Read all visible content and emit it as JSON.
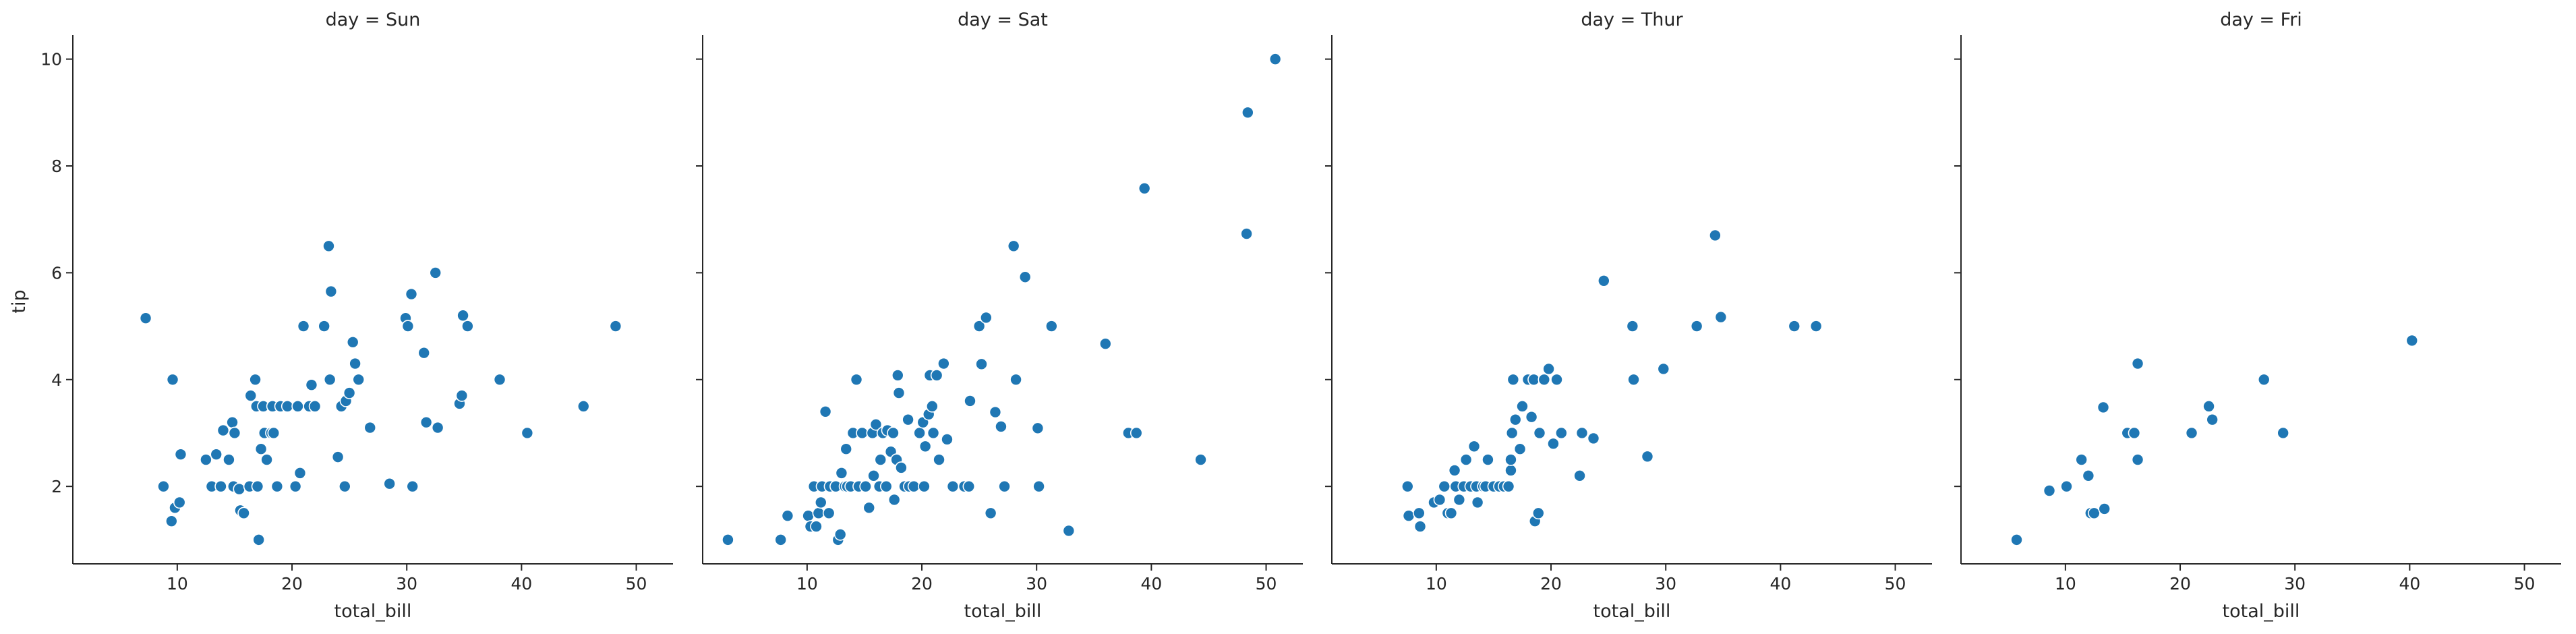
{
  "chart_data": {
    "type": "scatter",
    "x_label": "total_bill",
    "y_label": "tip",
    "xlim": [
      0.9,
      53.2
    ],
    "ylim": [
      0.55,
      10.45
    ],
    "x_ticks": [
      10,
      20,
      30,
      40,
      50
    ],
    "y_ticks": [
      2,
      4,
      6,
      8,
      10
    ],
    "grid": false,
    "point_color": "#1f77b4",
    "panels": [
      {
        "title": "day = Sun",
        "points": [
          [
            7.25,
            5.15
          ],
          [
            9.6,
            4.0
          ],
          [
            8.8,
            2.0
          ],
          [
            9.5,
            1.35
          ],
          [
            9.8,
            1.6
          ],
          [
            10.2,
            1.7
          ],
          [
            10.3,
            2.6
          ],
          [
            12.5,
            2.5
          ],
          [
            13.0,
            2.0
          ],
          [
            13.4,
            2.6
          ],
          [
            13.8,
            2.0
          ],
          [
            14.0,
            3.05
          ],
          [
            14.5,
            2.5
          ],
          [
            14.8,
            3.2
          ],
          [
            14.9,
            2.0
          ],
          [
            15.0,
            3.0
          ],
          [
            15.4,
            1.95
          ],
          [
            15.5,
            1.55
          ],
          [
            15.8,
            1.5
          ],
          [
            16.3,
            2.0
          ],
          [
            16.4,
            3.7
          ],
          [
            16.8,
            4.0
          ],
          [
            16.9,
            3.5
          ],
          [
            17.0,
            2.0
          ],
          [
            17.1,
            1.0
          ],
          [
            17.3,
            2.7
          ],
          [
            17.5,
            3.5
          ],
          [
            17.6,
            3.0
          ],
          [
            17.8,
            2.5
          ],
          [
            18.2,
            3.0
          ],
          [
            18.3,
            3.5
          ],
          [
            18.4,
            3.0
          ],
          [
            18.7,
            2.0
          ],
          [
            19.0,
            3.5
          ],
          [
            19.6,
            3.5
          ],
          [
            20.3,
            2.0
          ],
          [
            20.5,
            3.5
          ],
          [
            20.7,
            2.25
          ],
          [
            21.0,
            5.0
          ],
          [
            21.5,
            3.5
          ],
          [
            21.7,
            3.9
          ],
          [
            22.0,
            3.5
          ],
          [
            22.8,
            5.0
          ],
          [
            23.2,
            6.5
          ],
          [
            23.3,
            4.0
          ],
          [
            23.4,
            5.65
          ],
          [
            24.0,
            2.55
          ],
          [
            24.3,
            3.5
          ],
          [
            24.6,
            2.0
          ],
          [
            24.7,
            3.6
          ],
          [
            25.0,
            3.75
          ],
          [
            25.3,
            4.7
          ],
          [
            25.5,
            4.3
          ],
          [
            25.8,
            4.0
          ],
          [
            26.8,
            3.1
          ],
          [
            28.5,
            2.05
          ],
          [
            29.9,
            5.15
          ],
          [
            30.1,
            5.0
          ],
          [
            30.4,
            5.6
          ],
          [
            30.5,
            2.0
          ],
          [
            31.5,
            4.5
          ],
          [
            31.7,
            3.2
          ],
          [
            32.5,
            6.0
          ],
          [
            32.7,
            3.1
          ],
          [
            34.6,
            3.55
          ],
          [
            34.8,
            3.7
          ],
          [
            34.9,
            5.2
          ],
          [
            35.3,
            5.0
          ],
          [
            38.1,
            4.0
          ],
          [
            40.5,
            3.0
          ],
          [
            45.4,
            3.5
          ],
          [
            48.2,
            5.0
          ]
        ]
      },
      {
        "title": "day = Sat",
        "points": [
          [
            3.1,
            1.0
          ],
          [
            7.7,
            1.0
          ],
          [
            8.3,
            1.45
          ],
          [
            10.1,
            1.45
          ],
          [
            10.3,
            1.25
          ],
          [
            10.6,
            2.0
          ],
          [
            10.8,
            1.25
          ],
          [
            11.0,
            1.5
          ],
          [
            11.2,
            1.7
          ],
          [
            11.3,
            2.0
          ],
          [
            11.6,
            3.4
          ],
          [
            11.9,
            1.5
          ],
          [
            12.0,
            2.0
          ],
          [
            12.5,
            2.0
          ],
          [
            12.7,
            1.0
          ],
          [
            12.9,
            1.1
          ],
          [
            13.0,
            2.25
          ],
          [
            13.3,
            2.0
          ],
          [
            13.4,
            2.7
          ],
          [
            13.5,
            2.0
          ],
          [
            13.8,
            2.0
          ],
          [
            14.0,
            3.0
          ],
          [
            14.3,
            4.0
          ],
          [
            14.5,
            2.0
          ],
          [
            14.8,
            3.0
          ],
          [
            15.1,
            2.0
          ],
          [
            15.4,
            1.6
          ],
          [
            15.7,
            3.0
          ],
          [
            15.8,
            2.2
          ],
          [
            16.0,
            3.16
          ],
          [
            16.3,
            2.0
          ],
          [
            16.4,
            2.5
          ],
          [
            16.6,
            3.0
          ],
          [
            16.9,
            2.0
          ],
          [
            17.0,
            3.05
          ],
          [
            17.3,
            2.65
          ],
          [
            17.5,
            3.0
          ],
          [
            17.6,
            1.75
          ],
          [
            17.8,
            2.5
          ],
          [
            17.9,
            4.08
          ],
          [
            18.0,
            3.75
          ],
          [
            18.2,
            2.35
          ],
          [
            18.5,
            2.0
          ],
          [
            18.8,
            3.25
          ],
          [
            18.9,
            2.0
          ],
          [
            19.3,
            2.0
          ],
          [
            19.8,
            3.0
          ],
          [
            20.1,
            3.2
          ],
          [
            20.2,
            2.0
          ],
          [
            20.3,
            2.75
          ],
          [
            20.6,
            3.35
          ],
          [
            20.7,
            4.08
          ],
          [
            20.9,
            3.5
          ],
          [
            21.0,
            3.0
          ],
          [
            21.3,
            4.08
          ],
          [
            21.5,
            2.5
          ],
          [
            21.9,
            4.3
          ],
          [
            22.2,
            2.88
          ],
          [
            22.7,
            2.0
          ],
          [
            23.7,
            2.0
          ],
          [
            24.1,
            2.0
          ],
          [
            24.2,
            3.6
          ],
          [
            25.0,
            5.0
          ],
          [
            25.2,
            4.29
          ],
          [
            25.6,
            5.16
          ],
          [
            26.0,
            1.5
          ],
          [
            26.4,
            3.39
          ],
          [
            26.9,
            3.12
          ],
          [
            27.2,
            2.0
          ],
          [
            28.0,
            6.5
          ],
          [
            28.2,
            4.0
          ],
          [
            29.0,
            5.92
          ],
          [
            30.1,
            3.09
          ],
          [
            30.2,
            2.0
          ],
          [
            31.3,
            5.0
          ],
          [
            32.8,
            1.17
          ],
          [
            36.0,
            4.67
          ],
          [
            38.0,
            3.0
          ],
          [
            38.7,
            3.0
          ],
          [
            39.4,
            7.58
          ],
          [
            44.3,
            2.5
          ],
          [
            48.3,
            6.73
          ],
          [
            48.4,
            9.0
          ],
          [
            50.8,
            10.0
          ]
        ]
      },
      {
        "title": "day = Thur",
        "points": [
          [
            7.5,
            2.0
          ],
          [
            7.6,
            1.45
          ],
          [
            8.5,
            1.5
          ],
          [
            8.6,
            1.25
          ],
          [
            9.8,
            1.7
          ],
          [
            10.3,
            1.75
          ],
          [
            10.7,
            2.0
          ],
          [
            11.0,
            1.5
          ],
          [
            11.3,
            1.5
          ],
          [
            11.6,
            2.3
          ],
          [
            11.7,
            2.0
          ],
          [
            12.0,
            1.75
          ],
          [
            12.4,
            2.0
          ],
          [
            12.6,
            2.5
          ],
          [
            13.0,
            2.0
          ],
          [
            13.3,
            2.75
          ],
          [
            13.5,
            2.0
          ],
          [
            13.6,
            1.7
          ],
          [
            14.1,
            2.0
          ],
          [
            14.3,
            2.0
          ],
          [
            14.5,
            2.5
          ],
          [
            15.0,
            2.0
          ],
          [
            15.5,
            2.0
          ],
          [
            15.9,
            2.0
          ],
          [
            16.3,
            2.0
          ],
          [
            16.5,
            2.3
          ],
          [
            16.5,
            2.5
          ],
          [
            16.6,
            3.0
          ],
          [
            16.7,
            4.0
          ],
          [
            16.9,
            3.25
          ],
          [
            17.3,
            2.7
          ],
          [
            17.5,
            3.5
          ],
          [
            18.0,
            4.0
          ],
          [
            18.3,
            3.3
          ],
          [
            18.5,
            4.0
          ],
          [
            18.6,
            1.35
          ],
          [
            18.9,
            1.5
          ],
          [
            19.0,
            3.0
          ],
          [
            19.4,
            4.0
          ],
          [
            19.8,
            4.2
          ],
          [
            20.2,
            2.8
          ],
          [
            20.5,
            4.0
          ],
          [
            20.9,
            3.0
          ],
          [
            22.5,
            2.2
          ],
          [
            22.7,
            3.0
          ],
          [
            23.7,
            2.9
          ],
          [
            24.6,
            5.85
          ],
          [
            27.1,
            5.0
          ],
          [
            27.2,
            4.0
          ],
          [
            28.4,
            2.56
          ],
          [
            29.8,
            4.2
          ],
          [
            32.7,
            5.0
          ],
          [
            34.3,
            6.7
          ],
          [
            34.8,
            5.17
          ],
          [
            41.2,
            5.0
          ],
          [
            43.1,
            5.0
          ]
        ]
      },
      {
        "title": "day = Fri",
        "points": [
          [
            5.75,
            1.0
          ],
          [
            8.6,
            1.92
          ],
          [
            10.1,
            2.0
          ],
          [
            11.4,
            2.5
          ],
          [
            12.0,
            2.2
          ],
          [
            12.2,
            1.5
          ],
          [
            12.5,
            1.5
          ],
          [
            13.3,
            3.48
          ],
          [
            13.4,
            1.58
          ],
          [
            15.4,
            3.0
          ],
          [
            16.0,
            3.0
          ],
          [
            16.3,
            2.5
          ],
          [
            16.3,
            4.3
          ],
          [
            21.0,
            3.0
          ],
          [
            22.5,
            3.5
          ],
          [
            22.8,
            3.25
          ],
          [
            27.3,
            4.0
          ],
          [
            28.97,
            3.0
          ],
          [
            40.2,
            4.73
          ]
        ]
      }
    ]
  }
}
